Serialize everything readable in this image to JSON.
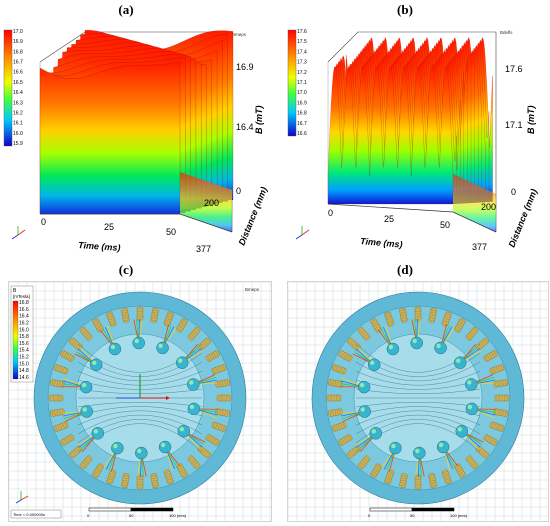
{
  "panels": {
    "a": {
      "label": "(a)"
    },
    "b": {
      "label": "(b)"
    },
    "c": {
      "label": "(c)"
    },
    "d": {
      "label": "(d)"
    }
  },
  "top_plots": {
    "a": {
      "unit_tag": "Bmeps",
      "legend": [
        "17.0",
        "16.9",
        "16.8",
        "16.7",
        "16.6",
        "16.5",
        "16.4",
        "16.3",
        "16.2",
        "16.1",
        "16.0",
        "15.9"
      ],
      "z_ticks": [
        "16.9",
        "16.4",
        "0"
      ],
      "y_ticks": [
        "200",
        "377"
      ],
      "x_ticks": [
        "0",
        "25",
        "50"
      ],
      "x_label": "Time (ms)",
      "y_label": "Distance (mm)",
      "z_label": "B (mT)"
    },
    "b": {
      "unit_tag": "Bdefls",
      "legend": [
        "17.6",
        "17.5",
        "17.4",
        "17.3",
        "17.2",
        "17.1",
        "17.0",
        "16.9",
        "16.8",
        "16.7",
        "16.6"
      ],
      "z_ticks": [
        "17.6",
        "17.1",
        "0"
      ],
      "y_ticks": [
        "200",
        "377"
      ],
      "x_ticks": [
        "0",
        "25",
        "50"
      ],
      "x_label": "Time (ms)",
      "y_label": "Distance (mm)",
      "z_label": "B (mT)"
    }
  },
  "bottom_plots": {
    "c": {
      "corner_tag": "Bmeps",
      "legend_title": "B",
      "legend_unit": "[mTesla]",
      "legend": [
        "16.8",
        "16.6",
        "16.4",
        "16.2",
        "16.0",
        "15.8",
        "15.6",
        "15.4",
        "15.2",
        "15.0",
        "14.8",
        "14.6"
      ],
      "scale_ticks": [
        "0",
        "50",
        "100 (mm)"
      ],
      "time_label": "Time = 0.000000s"
    },
    "d": {
      "scale_ticks": [
        "0",
        "50",
        "100 (mm)"
      ]
    }
  },
  "colors": {
    "rainbow": [
      "#ff0000",
      "#ff6a00",
      "#ffd400",
      "#b6ff00",
      "#00ff3a",
      "#00e6c8",
      "#00a0ff",
      "#0030ff",
      "#1a00c8"
    ],
    "motor_outer": "#5fb9d6",
    "motor_inner": "#a7dceb",
    "coil": "#c9b15a"
  }
}
